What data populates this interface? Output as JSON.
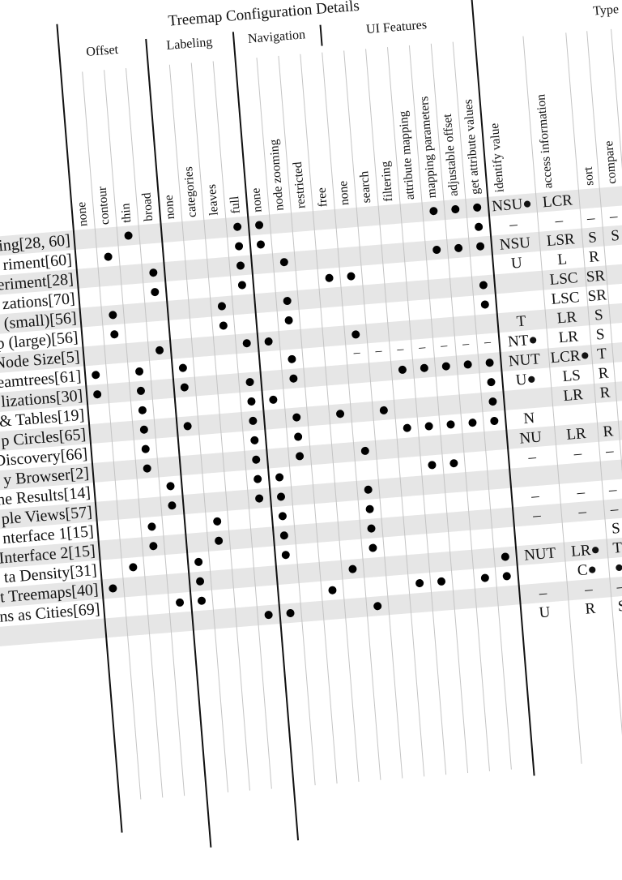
{
  "title": "Treemap Configuration Details",
  "groups": [
    {
      "id": "offset",
      "label": "Offset"
    },
    {
      "id": "labeling",
      "label": "Labeling"
    },
    {
      "id": "navigation",
      "label": "Navigation"
    },
    {
      "id": "ui",
      "label": "UI Features"
    },
    {
      "id": "type",
      "label": "Type"
    }
  ],
  "columns": [
    {
      "id": "off-none",
      "group": "offset",
      "label": "none"
    },
    {
      "id": "off-contour",
      "group": "offset",
      "label": "contour"
    },
    {
      "id": "off-thin",
      "group": "offset",
      "label": "thin"
    },
    {
      "id": "off-broad",
      "group": "offset",
      "label": "broad"
    },
    {
      "id": "lab-none",
      "group": "labeling",
      "label": "none"
    },
    {
      "id": "lab-categories",
      "group": "labeling",
      "label": "categories"
    },
    {
      "id": "lab-leaves",
      "group": "labeling",
      "label": "leaves"
    },
    {
      "id": "lab-full",
      "group": "labeling",
      "label": "full"
    },
    {
      "id": "nav-none",
      "group": "navigation",
      "label": "none"
    },
    {
      "id": "nav-node-zooming",
      "group": "navigation",
      "label": "node zooming"
    },
    {
      "id": "nav-restricted",
      "group": "navigation",
      "label": "restricted"
    },
    {
      "id": "nav-free",
      "group": "navigation",
      "label": "free"
    },
    {
      "id": "ui-none",
      "group": "ui",
      "label": "none"
    },
    {
      "id": "ui-search",
      "group": "ui",
      "label": "search"
    },
    {
      "id": "ui-filtering",
      "group": "ui",
      "label": "filtering"
    },
    {
      "id": "ui-attribute-mapping",
      "group": "ui",
      "label": "attribute mapping"
    },
    {
      "id": "ui-mapping-parameters",
      "group": "ui",
      "label": "mapping parameters"
    },
    {
      "id": "ui-adjustable-offset",
      "group": "ui",
      "label": "adjustable offset"
    },
    {
      "id": "ui-get-attribute-values",
      "group": "ui",
      "label": "get attribute values"
    }
  ],
  "type_columns": [
    {
      "id": "identify",
      "label": "identify value"
    },
    {
      "id": "access",
      "label": "access information"
    },
    {
      "id": "sort",
      "label": "sort"
    },
    {
      "id": "compare",
      "label": "compare"
    }
  ],
  "rows": [
    {
      "label": "ing[28, 60]",
      "marks": [
        "off-thin",
        "lab-full",
        "nav-none",
        "ui-mapping-parameters",
        "ui-adjustable-offset",
        "ui-get-attribute-values"
      ],
      "dashes": [],
      "types": [
        "NSU●",
        "LCR",
        "",
        ""
      ]
    },
    {
      "label": "riment[60]",
      "marks": [
        "off-contour",
        "lab-full",
        "nav-none",
        "ui-get-attribute-values"
      ],
      "dashes": [],
      "types": [
        "–",
        "–",
        "–",
        "–"
      ]
    },
    {
      "label": "eriment[28]",
      "marks": [
        "off-broad",
        "lab-full",
        "nav-node-zooming",
        "ui-mapping-parameters",
        "ui-adjustable-offset",
        "ui-get-attribute-values"
      ],
      "dashes": [],
      "types": [
        "NSU",
        "LSR",
        "S",
        "S"
      ]
    },
    {
      "label": "zations[70]",
      "marks": [
        "off-broad",
        "lab-full",
        "nav-free",
        "ui-none"
      ],
      "dashes": [],
      "types": [
        "U",
        "L",
        "R",
        ""
      ]
    },
    {
      "label": "(small)[56]",
      "marks": [
        "off-contour",
        "lab-leaves",
        "nav-node-zooming",
        "ui-get-attribute-values"
      ],
      "dashes": [],
      "types": [
        "",
        "LSC",
        "SR",
        ""
      ]
    },
    {
      "label": "p (large)[56]",
      "marks": [
        "off-contour",
        "lab-leaves",
        "nav-node-zooming",
        "ui-get-attribute-values"
      ],
      "dashes": [],
      "types": [
        "",
        "LSC",
        "SR",
        ""
      ]
    },
    {
      "label": "Node Size[5]",
      "marks": [
        "off-broad",
        "lab-full",
        "nav-none",
        "ui-none"
      ],
      "dashes": [],
      "types": [
        "T",
        "LR",
        "S",
        ""
      ]
    },
    {
      "label": "eamtrees[61]",
      "marks": [
        "off-none",
        "off-thin",
        "lab-none",
        "nav-node-zooming"
      ],
      "dashes": [
        "ui-none",
        "ui-search",
        "ui-filtering",
        "ui-attribute-mapping",
        "ui-mapping-parameters",
        "ui-adjustable-offset",
        "ui-get-attribute-values"
      ],
      "types": [
        "NT●",
        "LR",
        "S",
        ""
      ]
    },
    {
      "label": "lizations[30]",
      "marks": [
        "off-none",
        "off-thin",
        "lab-none",
        "lab-full",
        "nav-node-zooming",
        "ui-filtering",
        "ui-attribute-mapping",
        "ui-mapping-parameters",
        "ui-adjustable-offset",
        "ui-get-attribute-values"
      ],
      "dashes": [],
      "types": [
        "NUT",
        "LCR●",
        "T",
        ""
      ]
    },
    {
      "label": "& Tables[19]",
      "marks": [
        "off-thin",
        "lab-full",
        "nav-none",
        "ui-get-attribute-values"
      ],
      "dashes": [],
      "types": [
        "U●",
        "LS",
        "R",
        ""
      ]
    },
    {
      "label": "p Circles[65]",
      "marks": [
        "off-thin",
        "lab-none",
        "lab-full",
        "nav-node-zooming",
        "nav-free",
        "ui-search",
        "ui-get-attribute-values"
      ],
      "dashes": [],
      "types": [
        "",
        "LR",
        "R",
        ""
      ]
    },
    {
      "label": "Discovery[66]",
      "marks": [
        "off-thin",
        "lab-full",
        "nav-node-zooming",
        "ui-filtering",
        "ui-attribute-mapping",
        "ui-mapping-parameters",
        "ui-adjustable-offset",
        "ui-get-attribute-values"
      ],
      "dashes": [],
      "types": [
        "N",
        "",
        "",
        ""
      ]
    },
    {
      "label": "y Browser[2]",
      "marks": [
        "off-thin",
        "lab-full",
        "nav-node-zooming",
        "ui-none"
      ],
      "dashes": [],
      "types": [
        "NU",
        "LR",
        "R",
        ""
      ]
    },
    {
      "label": "ne Results[14]",
      "marks": [
        "off-broad",
        "lab-full",
        "nav-none",
        "ui-attribute-mapping",
        "ui-mapping-parameters"
      ],
      "dashes": [],
      "types": [
        "–",
        "–",
        "–",
        ""
      ]
    },
    {
      "label": "ple Views[57]",
      "marks": [
        "off-broad",
        "lab-full",
        "nav-none",
        "ui-none"
      ],
      "dashes": [],
      "types": [
        "",
        "",
        "",
        ""
      ]
    },
    {
      "label": "nterface 1[15]",
      "marks": [
        "off-thin",
        "lab-categories",
        "nav-none",
        "ui-none"
      ],
      "dashes": [],
      "types": [
        "–",
        "–",
        "–",
        ""
      ]
    },
    {
      "label": "Interface 2[15]",
      "marks": [
        "off-thin",
        "lab-categories",
        "nav-none",
        "ui-none"
      ],
      "dashes": [],
      "types": [
        "–",
        "–",
        "–",
        ""
      ]
    },
    {
      "label": "ta Density[31]",
      "marks": [
        "off-contour",
        "lab-none",
        "nav-none",
        "ui-none"
      ],
      "dashes": [],
      "types": [
        "",
        "",
        "S",
        ""
      ]
    },
    {
      "label": "t Treemaps[40]",
      "marks": [
        "off-none",
        "lab-none",
        "nav-free",
        "ui-get-attribute-values"
      ],
      "dashes": [],
      "types": [
        "NUT",
        "LR●",
        "T",
        ""
      ]
    },
    {
      "label": "ns as Cities[69]",
      "marks": [
        "off-broad",
        "lab-none",
        "nav-restricted",
        "ui-filtering",
        "ui-attribute-mapping",
        "ui-adjustable-offset",
        "ui-get-attribute-values"
      ],
      "dashes": [],
      "types": [
        "",
        "C●",
        "●",
        ""
      ]
    },
    {
      "label": "",
      "marks": [
        "lab-full",
        "nav-none",
        "ui-none"
      ],
      "dashes": [],
      "types": [
        "–",
        "–",
        "–",
        ""
      ]
    },
    {
      "label": "",
      "marks": [],
      "dashes": [],
      "types": [
        "U",
        "R",
        "S",
        ""
      ]
    }
  ]
}
